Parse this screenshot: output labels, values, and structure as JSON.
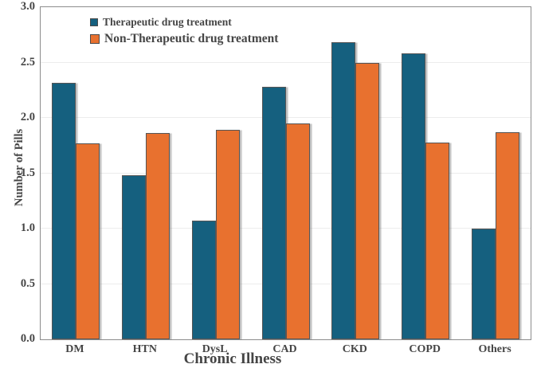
{
  "chart_data": {
    "type": "bar",
    "title": "",
    "categories": [
      "DM",
      "HTN",
      "DysL",
      "CAD",
      "CKD",
      "COPD",
      "Others"
    ],
    "series": [
      {
        "name": "Therapeutic drug treatment",
        "color": "#15607F",
        "values": [
          2.32,
          1.48,
          1.07,
          2.28,
          2.68,
          2.58,
          1.0
        ]
      },
      {
        "name": "Non-Therapeutic drug treatment",
        "color": "#E8712F",
        "values": [
          1.77,
          1.86,
          1.89,
          1.95,
          2.5,
          1.78,
          1.87
        ]
      }
    ],
    "xlabel": "Chronic Illness",
    "ylabel": "Number of Pills",
    "ylim": [
      0.0,
      3.0
    ],
    "ytick_step": 0.5,
    "yticks": [
      "0.0",
      "0.5",
      "1.0",
      "1.5",
      "2.0",
      "2.5",
      "3.0"
    ],
    "grid": "horizontal",
    "legend_position": "top-left-inside",
    "colors": {
      "bar_border": "#555555",
      "text": "#454545",
      "frame": "#8c8c8c",
      "gridline": "#ececec",
      "background": "#ffffff"
    }
  }
}
